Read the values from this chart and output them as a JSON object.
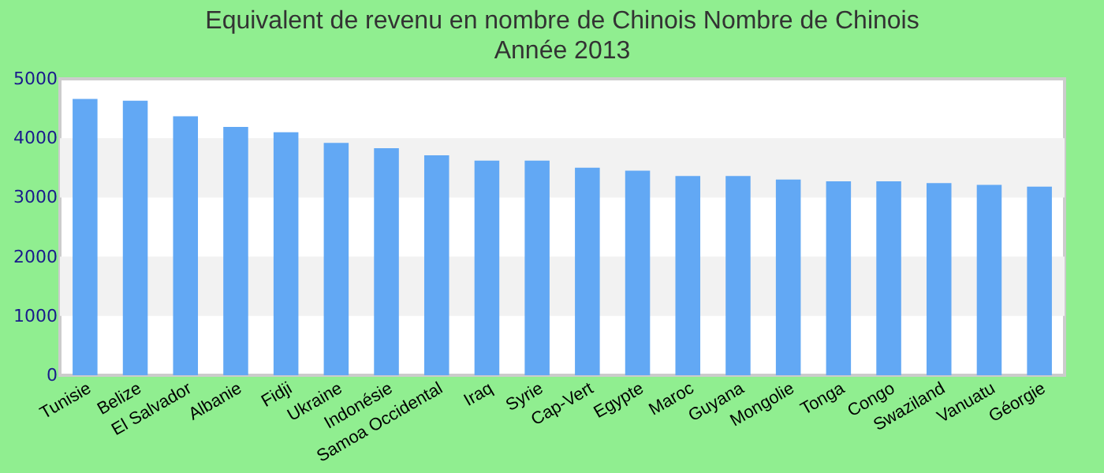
{
  "chart_data": {
    "type": "bar",
    "title": "Equivalent de revenu en nombre de Chinois  Nombre de Chinois",
    "subtitle": "Année 2013",
    "categories": [
      "Tunisie",
      "Belize",
      "El Salvador",
      "Albanie",
      "Fidji",
      "Ukraine",
      "Indonésie",
      "Samoa Occidental",
      "Iraq",
      "Syrie",
      "Cap-Vert",
      "Egypte",
      "Maroc",
      "Guyana",
      "Mongolie",
      "Tonga",
      "Congo",
      "Swaziland",
      "Vanuatu",
      "Géorgie"
    ],
    "values": [
      4660,
      4630,
      4370,
      4190,
      4100,
      3920,
      3830,
      3710,
      3620,
      3620,
      3500,
      3450,
      3360,
      3360,
      3300,
      3270,
      3270,
      3240,
      3210,
      3180
    ],
    "color": "#62a8f4",
    "ylim": [
      0,
      5000
    ],
    "yticks": [
      0,
      1000,
      2000,
      3000,
      4000,
      5000
    ],
    "bands": [
      {
        "axis": "y",
        "from": 1000,
        "to": 2000,
        "color": "#f2f2f2"
      },
      {
        "axis": "y",
        "from": 3000,
        "to": 4000,
        "color": "#f2f2f2"
      }
    ]
  }
}
